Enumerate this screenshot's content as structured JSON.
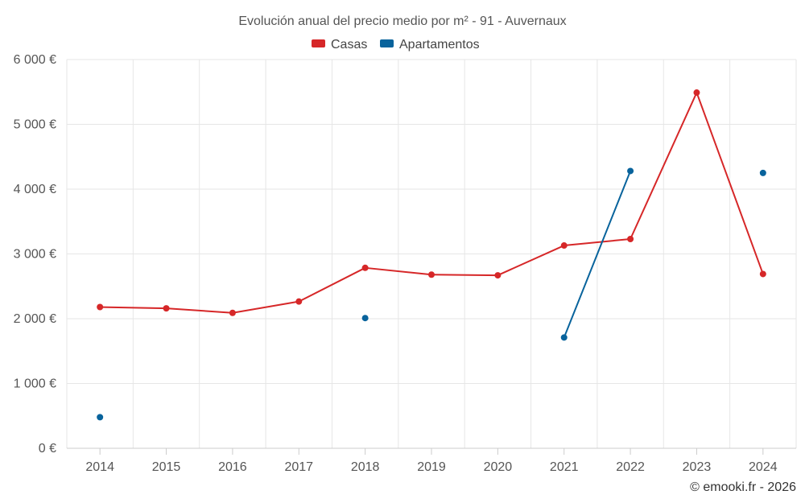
{
  "chart_data": {
    "type": "line",
    "title": "Evolución anual del precio medio por m² - 91 - Auvernaux",
    "categories": [
      "2014",
      "2015",
      "2016",
      "2017",
      "2018",
      "2019",
      "2020",
      "2021",
      "2022",
      "2023",
      "2024"
    ],
    "series": [
      {
        "name": "Casas",
        "color": "#d62728",
        "values": [
          2180,
          2160,
          2090,
          2265,
          2785,
          2680,
          2670,
          3130,
          3230,
          5490,
          2690
        ]
      },
      {
        "name": "Apartamentos",
        "color": "#08639c",
        "values": [
          480,
          null,
          null,
          null,
          2010,
          null,
          null,
          1710,
          4280,
          null,
          4250
        ]
      }
    ],
    "ylim": [
      0,
      6000
    ],
    "yticks": [
      0,
      1000,
      2000,
      3000,
      4000,
      5000,
      6000
    ],
    "ytick_labels": [
      "0 €",
      "1 000 €",
      "2 000 €",
      "3 000 €",
      "4 000 €",
      "5 000 €",
      "6 000 €"
    ],
    "xlabel": "",
    "ylabel": "",
    "legend_position": "top-center",
    "grid": true
  },
  "credit": "© emooki.fr - 2026"
}
